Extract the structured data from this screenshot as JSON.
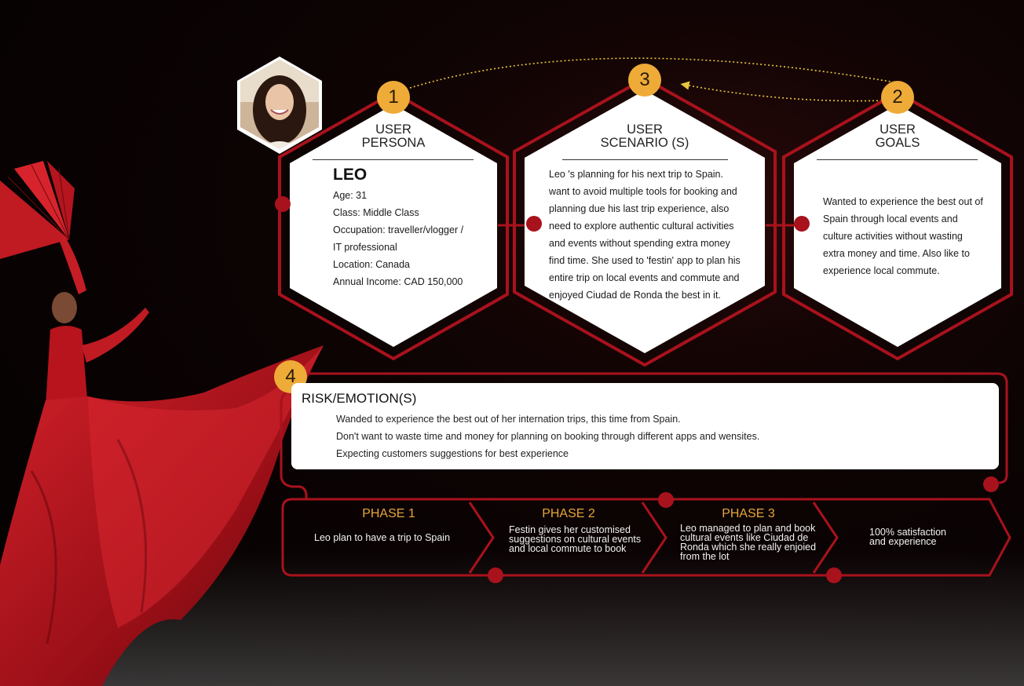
{
  "persona": {
    "number": "1",
    "title_line1": "USER",
    "title_line2": "PERSONA",
    "name": "LEO",
    "details": [
      "Age: 31",
      "Class: Middle Class",
      "Occupation: traveller/vlogger /",
      "IT professional",
      "Location: Canada",
      "Annual Income: CAD 150,000"
    ]
  },
  "scenario": {
    "number": "3",
    "title_line1": "USER",
    "title_line2": "SCENARIO (S)",
    "lines": [
      "Leo 's planning for his next trip to Spain.",
      "want to avoid multiple tools for booking and",
      "planning due his last trip experience, also",
      "need to explore authentic cultural activities",
      "and events without spending extra money",
      "find time. She used to 'festin' app to plan his",
      "entire trip on local events and commute and",
      "enjoyed Ciudad de Ronda the best in it."
    ]
  },
  "goals": {
    "number": "2",
    "title_line1": "USER",
    "title_line2": "GOALS",
    "lines": [
      "Wanted to experience the best out of",
      "Spain through local events and",
      "culture activities without wasting",
      "extra money and time. Also like to",
      "experience local commute."
    ]
  },
  "risk": {
    "number": "4",
    "title": "RISK/EMOTION(S)",
    "items": [
      "Wanded to experience the best out of her internation trips, this time from Spain.",
      "Don't want to waste time and money for planning on booking through different apps and wensites.",
      "Expecting customers suggestions for best experience"
    ]
  },
  "phases": [
    {
      "title": "PHASE 1",
      "lines": [
        "Leo plan to have a trip to Spain"
      ]
    },
    {
      "title": "PHASE 2",
      "lines": [
        "Festin gives her customised",
        "suggestions on cultural events",
        "and local commute to book"
      ]
    },
    {
      "title": "PHASE 3",
      "lines": [
        "Leo managed to plan and book",
        "cultural events like Ciudad de",
        "Ronda which she really enjoied",
        "from the lot"
      ]
    },
    {
      "title": "",
      "lines": [
        "100% satisfaction",
        "and experience"
      ]
    }
  ],
  "colors": {
    "accent_red": "#a8121c",
    "badge_gold": "#eeab38",
    "phase_title": "#e8a53a",
    "arrow_yellow": "#e7c640"
  },
  "icons": {
    "avatar": "woman-portrait",
    "dancer": "flamenco-dancer-with-fan"
  }
}
